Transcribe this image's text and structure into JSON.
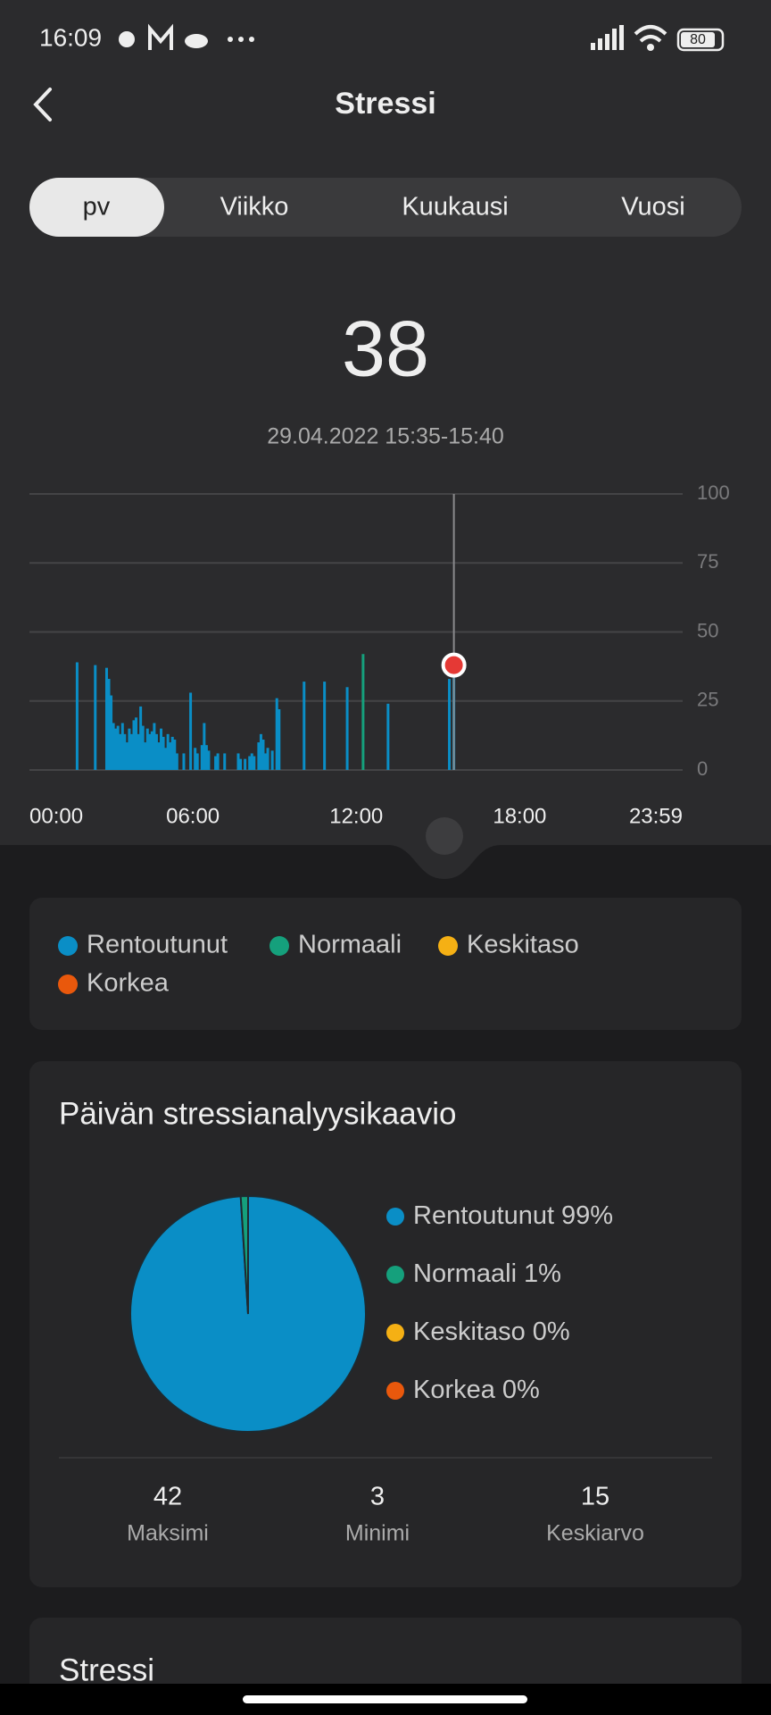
{
  "status_bar": {
    "time": "16:09",
    "battery": "80"
  },
  "header": {
    "title": "Stressi"
  },
  "tabs": [
    "pv",
    "Viikko",
    "Kuukausi",
    "Vuosi"
  ],
  "chart_data": [
    {
      "type": "bar",
      "x": [
        105,
        145,
        170,
        175,
        180,
        185,
        190,
        195,
        200,
        205,
        210,
        215,
        220,
        225,
        230,
        235,
        240,
        245,
        250,
        255,
        260,
        265,
        270,
        275,
        280,
        285,
        290,
        295,
        300,
        305,
        310,
        315,
        320,
        325,
        340,
        355,
        365,
        370,
        380,
        385,
        390,
        395,
        410,
        415,
        430,
        460,
        465,
        475,
        485,
        490,
        495,
        505,
        510,
        515,
        520,
        525,
        535,
        545,
        550,
        605,
        650,
        700,
        735,
        790,
        925,
        935
      ],
      "values": [
        39,
        38,
        37,
        33,
        27,
        17,
        15,
        16,
        13,
        17,
        13,
        10,
        15,
        13,
        18,
        19,
        13,
        23,
        16,
        10,
        15,
        13,
        14,
        17,
        13,
        10,
        15,
        12,
        8,
        13,
        10,
        12,
        11,
        6,
        6,
        28,
        8,
        6,
        9,
        17,
        9,
        7,
        5,
        6,
        6,
        6,
        4,
        4,
        5,
        6,
        5,
        10,
        13,
        11,
        6,
        8,
        7,
        26,
        22,
        32,
        32,
        30,
        42,
        24,
        33,
        38
      ],
      "colors": [
        "#0a8ec6",
        "#0a8ec6",
        "#0a8ec6",
        "#0a8ec6",
        "#0a8ec6",
        "#0a8ec6",
        "#0a8ec6",
        "#0a8ec6",
        "#0a8ec6",
        "#0a8ec6",
        "#0a8ec6",
        "#0a8ec6",
        "#0a8ec6",
        "#0a8ec6",
        "#0a8ec6",
        "#0a8ec6",
        "#0a8ec6",
        "#0a8ec6",
        "#0a8ec6",
        "#0a8ec6",
        "#0a8ec6",
        "#0a8ec6",
        "#0a8ec6",
        "#0a8ec6",
        "#0a8ec6",
        "#0a8ec6",
        "#0a8ec6",
        "#0a8ec6",
        "#0a8ec6",
        "#0a8ec6",
        "#0a8ec6",
        "#0a8ec6",
        "#0a8ec6",
        "#0a8ec6",
        "#0a8ec6",
        "#0a8ec6",
        "#0a8ec6",
        "#0a8ec6",
        "#0a8ec6",
        "#0a8ec6",
        "#0a8ec6",
        "#0a8ec6",
        "#0a8ec6",
        "#0a8ec6",
        "#0a8ec6",
        "#0a8ec6",
        "#0a8ec6",
        "#0a8ec6",
        "#0a8ec6",
        "#0a8ec6",
        "#0a8ec6",
        "#0a8ec6",
        "#0a8ec6",
        "#0a8ec6",
        "#0a8ec6",
        "#0a8ec6",
        "#0a8ec6",
        "#0a8ec6",
        "#0a8ec6",
        "#0a8ec6",
        "#0a8ec6",
        "#0a8ec6",
        "#15a07c",
        "#0a8ec6",
        "#0a8ec6",
        "#0a8ec6"
      ],
      "xlim": [
        0,
        1439
      ],
      "xticks": [
        {
          "value": 0,
          "label": "00:00"
        },
        {
          "value": 360,
          "label": "06:00"
        },
        {
          "value": 720,
          "label": "12:00"
        },
        {
          "value": 1080,
          "label": "18:00"
        },
        {
          "value": 1439,
          "label": "23:59"
        }
      ],
      "ylim": [
        0,
        100
      ],
      "yticks": [
        0,
        25,
        50,
        75,
        100
      ],
      "grid": true,
      "selected": 935,
      "selected_label": "29.04.2022 15:35-15:40"
    },
    {
      "type": "pie",
      "title": "Päivän stressianalyysikaavio",
      "categories": [
        "Rentoutunut",
        "Normaali",
        "Keskitaso",
        "Korkea"
      ],
      "values": [
        99,
        1,
        0,
        0
      ],
      "value_labels": [
        "99%",
        "1%",
        "0%",
        "0%"
      ],
      "colors": [
        "#0a8ec6",
        "#15a07c",
        "#f5b014",
        "#e9580c"
      ]
    }
  ],
  "stats": [
    {
      "value": 42,
      "label": "Maksimi"
    },
    {
      "value": 3,
      "label": "Minimi"
    },
    {
      "value": 15,
      "label": "Keskiarvo"
    }
  ],
  "next_card": {
    "title": "Stressi"
  }
}
